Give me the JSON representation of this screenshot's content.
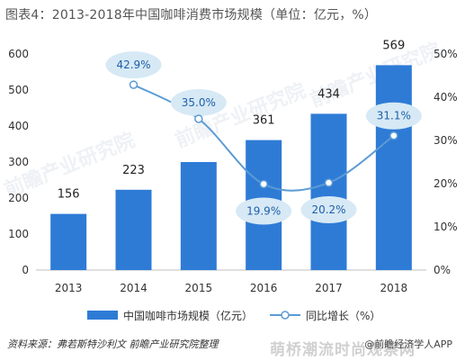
{
  "title": "图表4：2013-2018年中国咖啡消费市场规模（单位：亿元，%）",
  "source": "资料来源：弗若斯特沙利文 前瞻产业研究院整理",
  "brand": "@前瞻经济学人APP",
  "watermark_bottom": "萌桥潮流时尚观察网",
  "watermark_logo": "前瞻产业研究院",
  "colors": {
    "bar": "#2e7bd6",
    "line": "#5b9bd5",
    "bubble": "#d6e9f5",
    "bubble_text": "#1f5fa8"
  },
  "chart_data": {
    "type": "bar",
    "categories": [
      "2013",
      "2014",
      "2015",
      "2016",
      "2017",
      "2018"
    ],
    "series": [
      {
        "name": "中国咖啡市场规模（亿元）",
        "type": "bar",
        "axis": "left",
        "values": [
          156,
          223,
          300,
          361,
          434,
          569
        ],
        "data_labels": [
          "156",
          "223",
          "",
          "361",
          "434",
          "569"
        ]
      },
      {
        "name": "同比增长（%）",
        "type": "line",
        "axis": "right",
        "values": [
          null,
          42.9,
          35.0,
          19.9,
          20.2,
          31.1
        ],
        "data_labels": [
          "",
          "42.9%",
          "35.0%",
          "19.9%",
          "20.2%",
          "31.1%"
        ]
      }
    ],
    "y_left": {
      "min": 0,
      "max": 600,
      "ticks": [
        "0",
        "100",
        "200",
        "300",
        "400",
        "500",
        "600"
      ]
    },
    "y_right": {
      "min": 0,
      "max": 50,
      "ticks": [
        "0%",
        "10%",
        "20%",
        "30%",
        "40%",
        "50%"
      ]
    },
    "legend_position": "bottom",
    "grid": false
  }
}
